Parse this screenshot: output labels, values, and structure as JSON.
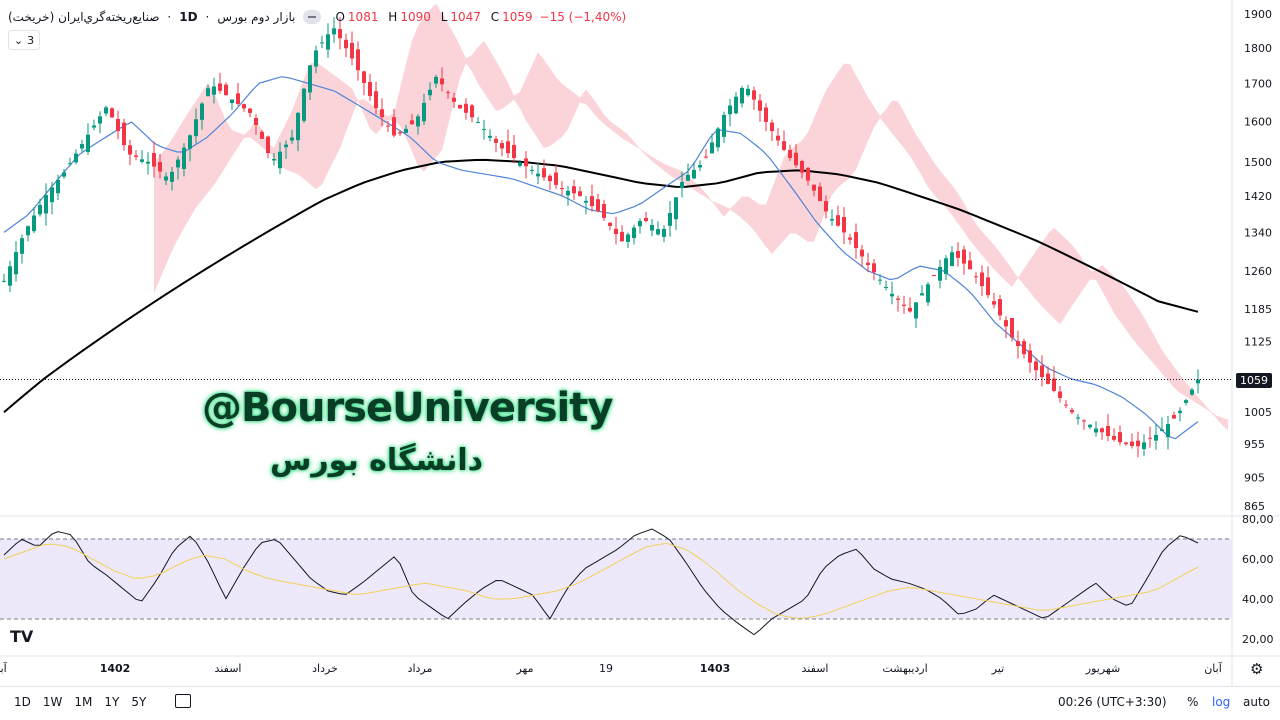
{
  "header": {
    "symbol": "صنايع‌ريخته‌گري‌ايران (خريخت)",
    "interval": "1D",
    "exchange": "بازار دوم بورس",
    "ohlc": {
      "o": "1081",
      "h": "1090",
      "l": "1047",
      "c": "1059",
      "chg": "−15 (−1,40%)"
    }
  },
  "collapse_count": "3",
  "watermark": {
    "handle": "@BourseUniversity",
    "fa": "دانشگاه بورس"
  },
  "price_axis": [
    "1900",
    "1800",
    "1700",
    "1600",
    "1500",
    "1420",
    "1340",
    "1260",
    "1185",
    "1125",
    "1059",
    "1005",
    "955",
    "905",
    "865"
  ],
  "rsi_axis": [
    "80,00",
    "60,00",
    "40,00",
    "20,00"
  ],
  "last_price": "1059",
  "time_axis": [
    "آبا",
    "1402",
    "اسفند",
    "خرداد",
    "مرداد",
    "مهر",
    "19",
    "1403",
    "اسفند",
    "اردیبهشت",
    "تیر",
    "شهریور",
    "آبان"
  ],
  "bottom_bar": {
    "timeframes": [
      "1D",
      "1W",
      "1M",
      "1Y",
      "5Y"
    ],
    "clock": "00:26 (UTC+3:30)",
    "percent": "%",
    "log": "log",
    "auto": "auto"
  },
  "colors": {
    "up": "#089981",
    "down": "#f23645",
    "kijun": "#4f84d8",
    "ma": "#000000",
    "cloud_bear": "#f9c6cc",
    "cloud_bull": "#cdeee3",
    "rsi_band": "#ede8fa",
    "rsi_signal": "#f0d25a"
  },
  "chart_data": [
    {
      "type": "candlestick",
      "scale": "log",
      "ylim": [
        865,
        1900
      ],
      "close_path": [
        1240,
        1340,
        1420,
        1480,
        1560,
        1640,
        1520,
        1500,
        1460,
        1560,
        1700,
        1660,
        1620,
        1500,
        1560,
        1780,
        1860,
        1760,
        1640,
        1560,
        1600,
        1720,
        1640,
        1600,
        1540,
        1500,
        1470,
        1440,
        1420,
        1380,
        1320,
        1370,
        1340,
        1460,
        1500,
        1620,
        1700,
        1600,
        1520,
        1460,
        1380,
        1330,
        1270,
        1220,
        1180,
        1240,
        1300,
        1260,
        1200,
        1130,
        1080,
        1040,
        1000,
        980,
        960,
        950,
        970,
        1000,
        1059
      ],
      "kijun_path": [
        1340,
        1380,
        1450,
        1520,
        1560,
        1600,
        1540,
        1520,
        1560,
        1620,
        1700,
        1720,
        1700,
        1680,
        1640,
        1600,
        1560,
        1500,
        1480,
        1470,
        1460,
        1440,
        1420,
        1390,
        1380,
        1400,
        1440,
        1480,
        1580,
        1570,
        1520,
        1440,
        1360,
        1300,
        1260,
        1240,
        1270,
        1260,
        1220,
        1160,
        1120,
        1080,
        1060,
        1050,
        1030,
        1000,
        960,
        990
      ],
      "ma_path": [
        1005,
        1060,
        1110,
        1160,
        1210,
        1260,
        1310,
        1360,
        1410,
        1450,
        1480,
        1500,
        1505,
        1500,
        1490,
        1470,
        1450,
        1440,
        1450,
        1475,
        1480,
        1470,
        1450,
        1420,
        1390,
        1355,
        1320,
        1280,
        1240,
        1200,
        1180
      ],
      "last": 1059,
      "open": 1081,
      "high": 1090,
      "low": 1047,
      "close": 1059
    },
    {
      "type": "line",
      "name": "RSI",
      "ylim": [
        20,
        80
      ],
      "bands": [
        30,
        70
      ],
      "rsi_path": [
        62,
        70,
        66,
        74,
        72,
        58,
        52,
        45,
        38,
        50,
        65,
        72,
        58,
        40,
        55,
        68,
        70,
        60,
        50,
        44,
        42,
        48,
        55,
        62,
        42,
        36,
        30,
        38,
        45,
        50,
        46,
        42,
        30,
        45,
        55,
        60,
        65,
        72,
        75,
        70,
        58,
        45,
        35,
        28,
        22,
        30,
        35,
        40,
        55,
        62,
        65,
        55,
        50,
        48,
        45,
        40,
        32,
        35,
        42,
        38,
        34,
        30,
        36,
        42,
        48,
        40,
        36,
        50,
        65,
        72,
        68
      ],
      "signal_path": [
        60,
        64,
        68,
        66,
        60,
        54,
        50,
        52,
        58,
        62,
        60,
        54,
        50,
        48,
        46,
        44,
        42,
        44,
        46,
        48,
        46,
        44,
        40,
        40,
        42,
        44,
        48,
        54,
        60,
        66,
        68,
        64,
        56,
        46,
        38,
        32,
        30,
        32,
        36,
        40,
        44,
        46,
        44,
        42,
        40,
        38,
        36,
        34,
        36,
        38,
        40,
        42,
        44,
        50,
        56
      ]
    }
  ]
}
